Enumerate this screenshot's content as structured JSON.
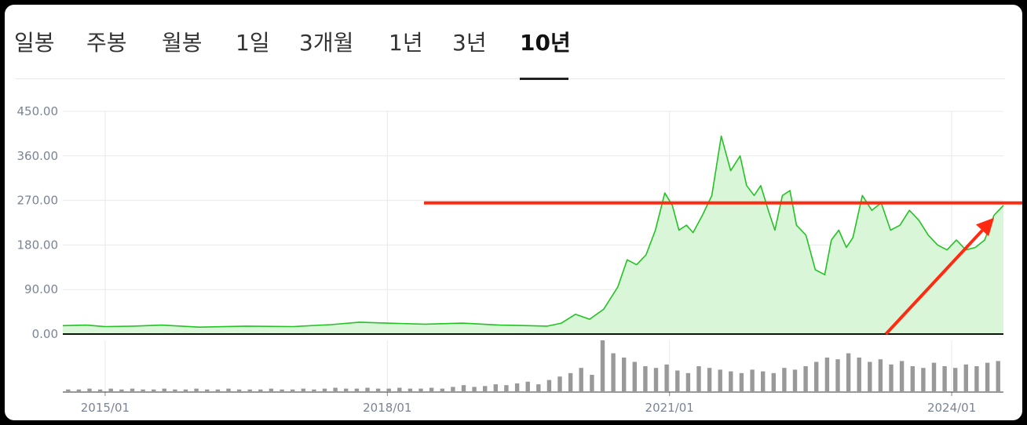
{
  "tabs": [
    {
      "label": "일봉",
      "active": false
    },
    {
      "label": "주봉",
      "active": false
    },
    {
      "label": "월봉",
      "active": false
    },
    {
      "label": "1일",
      "active": false
    },
    {
      "label": "3개월",
      "active": false
    },
    {
      "label": "1년",
      "active": false
    },
    {
      "label": "3년",
      "active": false
    },
    {
      "label": "10년",
      "active": true
    }
  ],
  "colors": {
    "line": "#22c322",
    "fill": "#d9f6d9",
    "annotation": "#ff2a0f",
    "volume": "#999999",
    "grid": "#e9e9e9"
  },
  "chart_data": {
    "type": "area",
    "y_ticks": [
      "450.00",
      "360.00",
      "270.00",
      "180.00",
      "90.00",
      "0.00"
    ],
    "ylim": [
      0,
      450
    ],
    "x_ticks": [
      "2015/01",
      "2018/01",
      "2021/01",
      "2024/01"
    ],
    "xlim": [
      2014.55,
      2024.55
    ],
    "grid": true,
    "series": [
      {
        "x": [
          2014.55,
          2014.8,
          2015.0,
          2015.3,
          2015.6,
          2016.0,
          2016.5,
          2017.0,
          2017.4,
          2017.7,
          2018.0,
          2018.4,
          2018.8,
          2019.2,
          2019.5,
          2019.7,
          2019.85,
          2020.0,
          2020.15,
          2020.3,
          2020.45,
          2020.55,
          2020.65,
          2020.75,
          2020.85,
          2020.95,
          2021.03,
          2021.1,
          2021.18,
          2021.25,
          2021.35,
          2021.45,
          2021.55,
          2021.65,
          2021.75,
          2021.82,
          2021.9,
          2021.97,
          2022.05,
          2022.12,
          2022.2,
          2022.28,
          2022.35,
          2022.45,
          2022.55,
          2022.65,
          2022.72,
          2022.8,
          2022.88,
          2022.95,
          2023.05,
          2023.15,
          2023.25,
          2023.35,
          2023.45,
          2023.55,
          2023.65,
          2023.75,
          2023.85,
          2023.95,
          2024.05,
          2024.15,
          2024.25,
          2024.35,
          2024.45,
          2024.55
        ],
        "values": [
          17,
          18,
          15,
          16,
          18,
          14,
          16,
          15,
          19,
          24,
          22,
          20,
          22,
          18,
          17,
          16,
          22,
          40,
          30,
          50,
          95,
          150,
          140,
          160,
          210,
          285,
          260,
          210,
          220,
          205,
          240,
          280,
          400,
          330,
          360,
          300,
          280,
          300,
          250,
          210,
          280,
          290,
          220,
          200,
          130,
          120,
          190,
          210,
          175,
          195,
          280,
          250,
          265,
          210,
          220,
          250,
          230,
          200,
          180,
          170,
          190,
          170,
          175,
          190,
          240,
          260
        ]
      }
    ],
    "volume": [
      3,
      3,
      4,
      3,
      4,
      3,
      4,
      3,
      3,
      4,
      3,
      3,
      4,
      3,
      3,
      4,
      3,
      3,
      3,
      4,
      3,
      3,
      4,
      3,
      4,
      5,
      4,
      4,
      5,
      4,
      4,
      5,
      4,
      4,
      5,
      4,
      6,
      8,
      6,
      7,
      9,
      8,
      10,
      12,
      9,
      14,
      18,
      22,
      28,
      20,
      60,
      45,
      40,
      35,
      30,
      28,
      32,
      25,
      22,
      30,
      28,
      26,
      24,
      22,
      26,
      24,
      22,
      28,
      26,
      30,
      35,
      40,
      38,
      45,
      40,
      35,
      38,
      32,
      36,
      30,
      28,
      34,
      30,
      28,
      32,
      30,
      34,
      36
    ],
    "annotation_line_y": 265,
    "annotation_arrow": {
      "from": [
        2023.3,
        0
      ],
      "to": [
        2024.45,
        235
      ]
    }
  }
}
